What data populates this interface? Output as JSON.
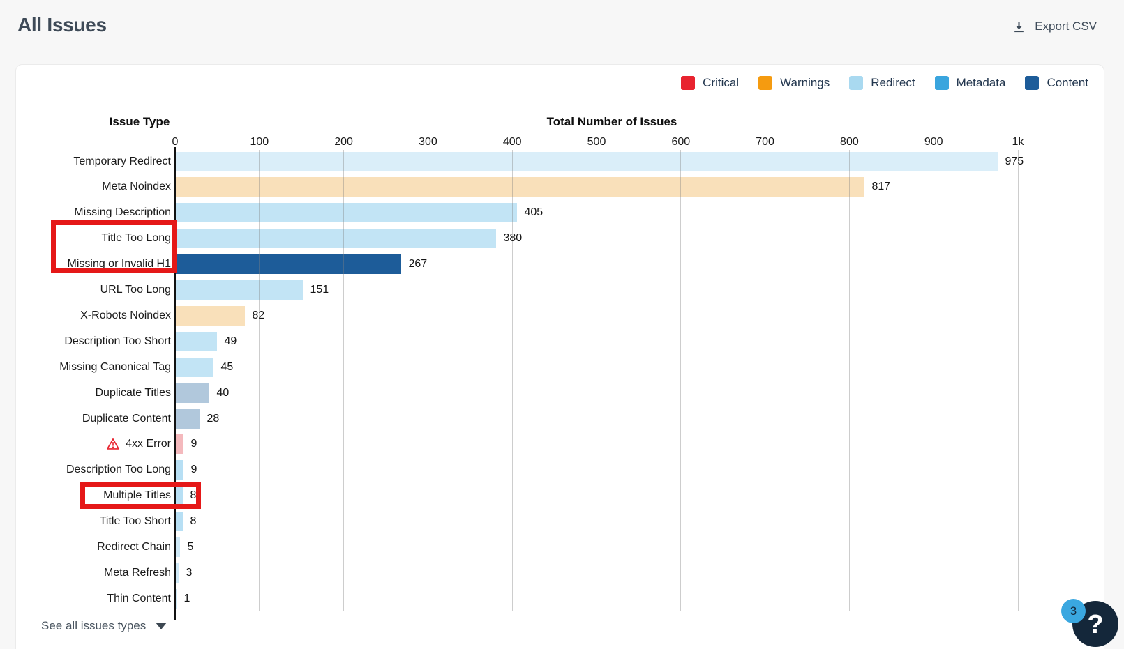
{
  "page_title": "All Issues",
  "toolbar": {
    "export_label": "Export CSV"
  },
  "legend": {
    "items": [
      {
        "label": "Critical",
        "color": "#e8232f"
      },
      {
        "label": "Warnings",
        "color": "#f59b10"
      },
      {
        "label": "Redirect",
        "color": "#a9d9f0"
      },
      {
        "label": "Metadata",
        "color": "#3aa5de"
      },
      {
        "label": "Content",
        "color": "#1d5c99"
      }
    ]
  },
  "chart_data": {
    "type": "bar",
    "orientation": "horizontal",
    "category_axis_title": "Issue Type",
    "value_axis_title": "Total Number of Issues",
    "xlim": [
      0,
      1000
    ],
    "tick_labels": [
      "0",
      "100",
      "200",
      "300",
      "400",
      "500",
      "600",
      "700",
      "800",
      "900",
      "1k"
    ],
    "tick_values": [
      0,
      100,
      200,
      300,
      400,
      500,
      600,
      700,
      800,
      900,
      1000
    ],
    "grid": true,
    "legend_position": "top-right",
    "rows": [
      {
        "label": "Temporary Redirect",
        "value": 975,
        "category": "Redirect",
        "bar_color": "#daeef9"
      },
      {
        "label": "Meta Noindex",
        "value": 817,
        "category": "Warnings",
        "bar_color": "#f9e0ba"
      },
      {
        "label": "Missing Description",
        "value": 405,
        "category": "Metadata",
        "bar_color": "#c2e4f5"
      },
      {
        "label": "Title Too Long",
        "value": 380,
        "category": "Metadata",
        "bar_color": "#c2e4f5",
        "highlighted": true
      },
      {
        "label": "Missing or Invalid H1",
        "value": 267,
        "category": "Content",
        "bar_color": "#1d5c99",
        "highlighted": true
      },
      {
        "label": "URL Too Long",
        "value": 151,
        "category": "Metadata",
        "bar_color": "#c2e4f5"
      },
      {
        "label": "X-Robots Noindex",
        "value": 82,
        "category": "Warnings",
        "bar_color": "#f9e0ba"
      },
      {
        "label": "Description Too Short",
        "value": 49,
        "category": "Metadata",
        "bar_color": "#c2e4f5"
      },
      {
        "label": "Missing Canonical Tag",
        "value": 45,
        "category": "Metadata",
        "bar_color": "#c2e4f5"
      },
      {
        "label": "Duplicate Titles",
        "value": 40,
        "category": "Content",
        "bar_color": "#b1c8dc"
      },
      {
        "label": "Duplicate Content",
        "value": 28,
        "category": "Content",
        "bar_color": "#b1c8dc"
      },
      {
        "label": "4xx Error",
        "value": 9,
        "category": "Critical",
        "bar_color": "#f4b9bd",
        "alert_icon": true
      },
      {
        "label": "Description Too Long",
        "value": 9,
        "category": "Metadata",
        "bar_color": "#b7dff4"
      },
      {
        "label": "Multiple Titles",
        "value": 8,
        "category": "Metadata",
        "bar_color": "#b7dff4",
        "highlighted": true
      },
      {
        "label": "Title Too Short",
        "value": 8,
        "category": "Metadata",
        "bar_color": "#b7dff4"
      },
      {
        "label": "Redirect Chain",
        "value": 5,
        "category": "Redirect",
        "bar_color": "#cfe9f7"
      },
      {
        "label": "Meta Refresh",
        "value": 3,
        "category": "Redirect",
        "bar_color": "#cfe9f7"
      },
      {
        "label": "Thin Content",
        "value": 1,
        "category": "Content",
        "bar_color": "#cfe9f7"
      }
    ]
  },
  "annotations": {
    "color": "#e51818",
    "boxes": [
      {
        "covers": [
          "Title Too Long",
          "Missing or Invalid H1"
        ]
      },
      {
        "covers": [
          "Multiple Titles"
        ]
      }
    ]
  },
  "footer": {
    "see_all_label": "See all issues types"
  },
  "help_widget": {
    "badge_count": "3",
    "icon_label": "?"
  }
}
